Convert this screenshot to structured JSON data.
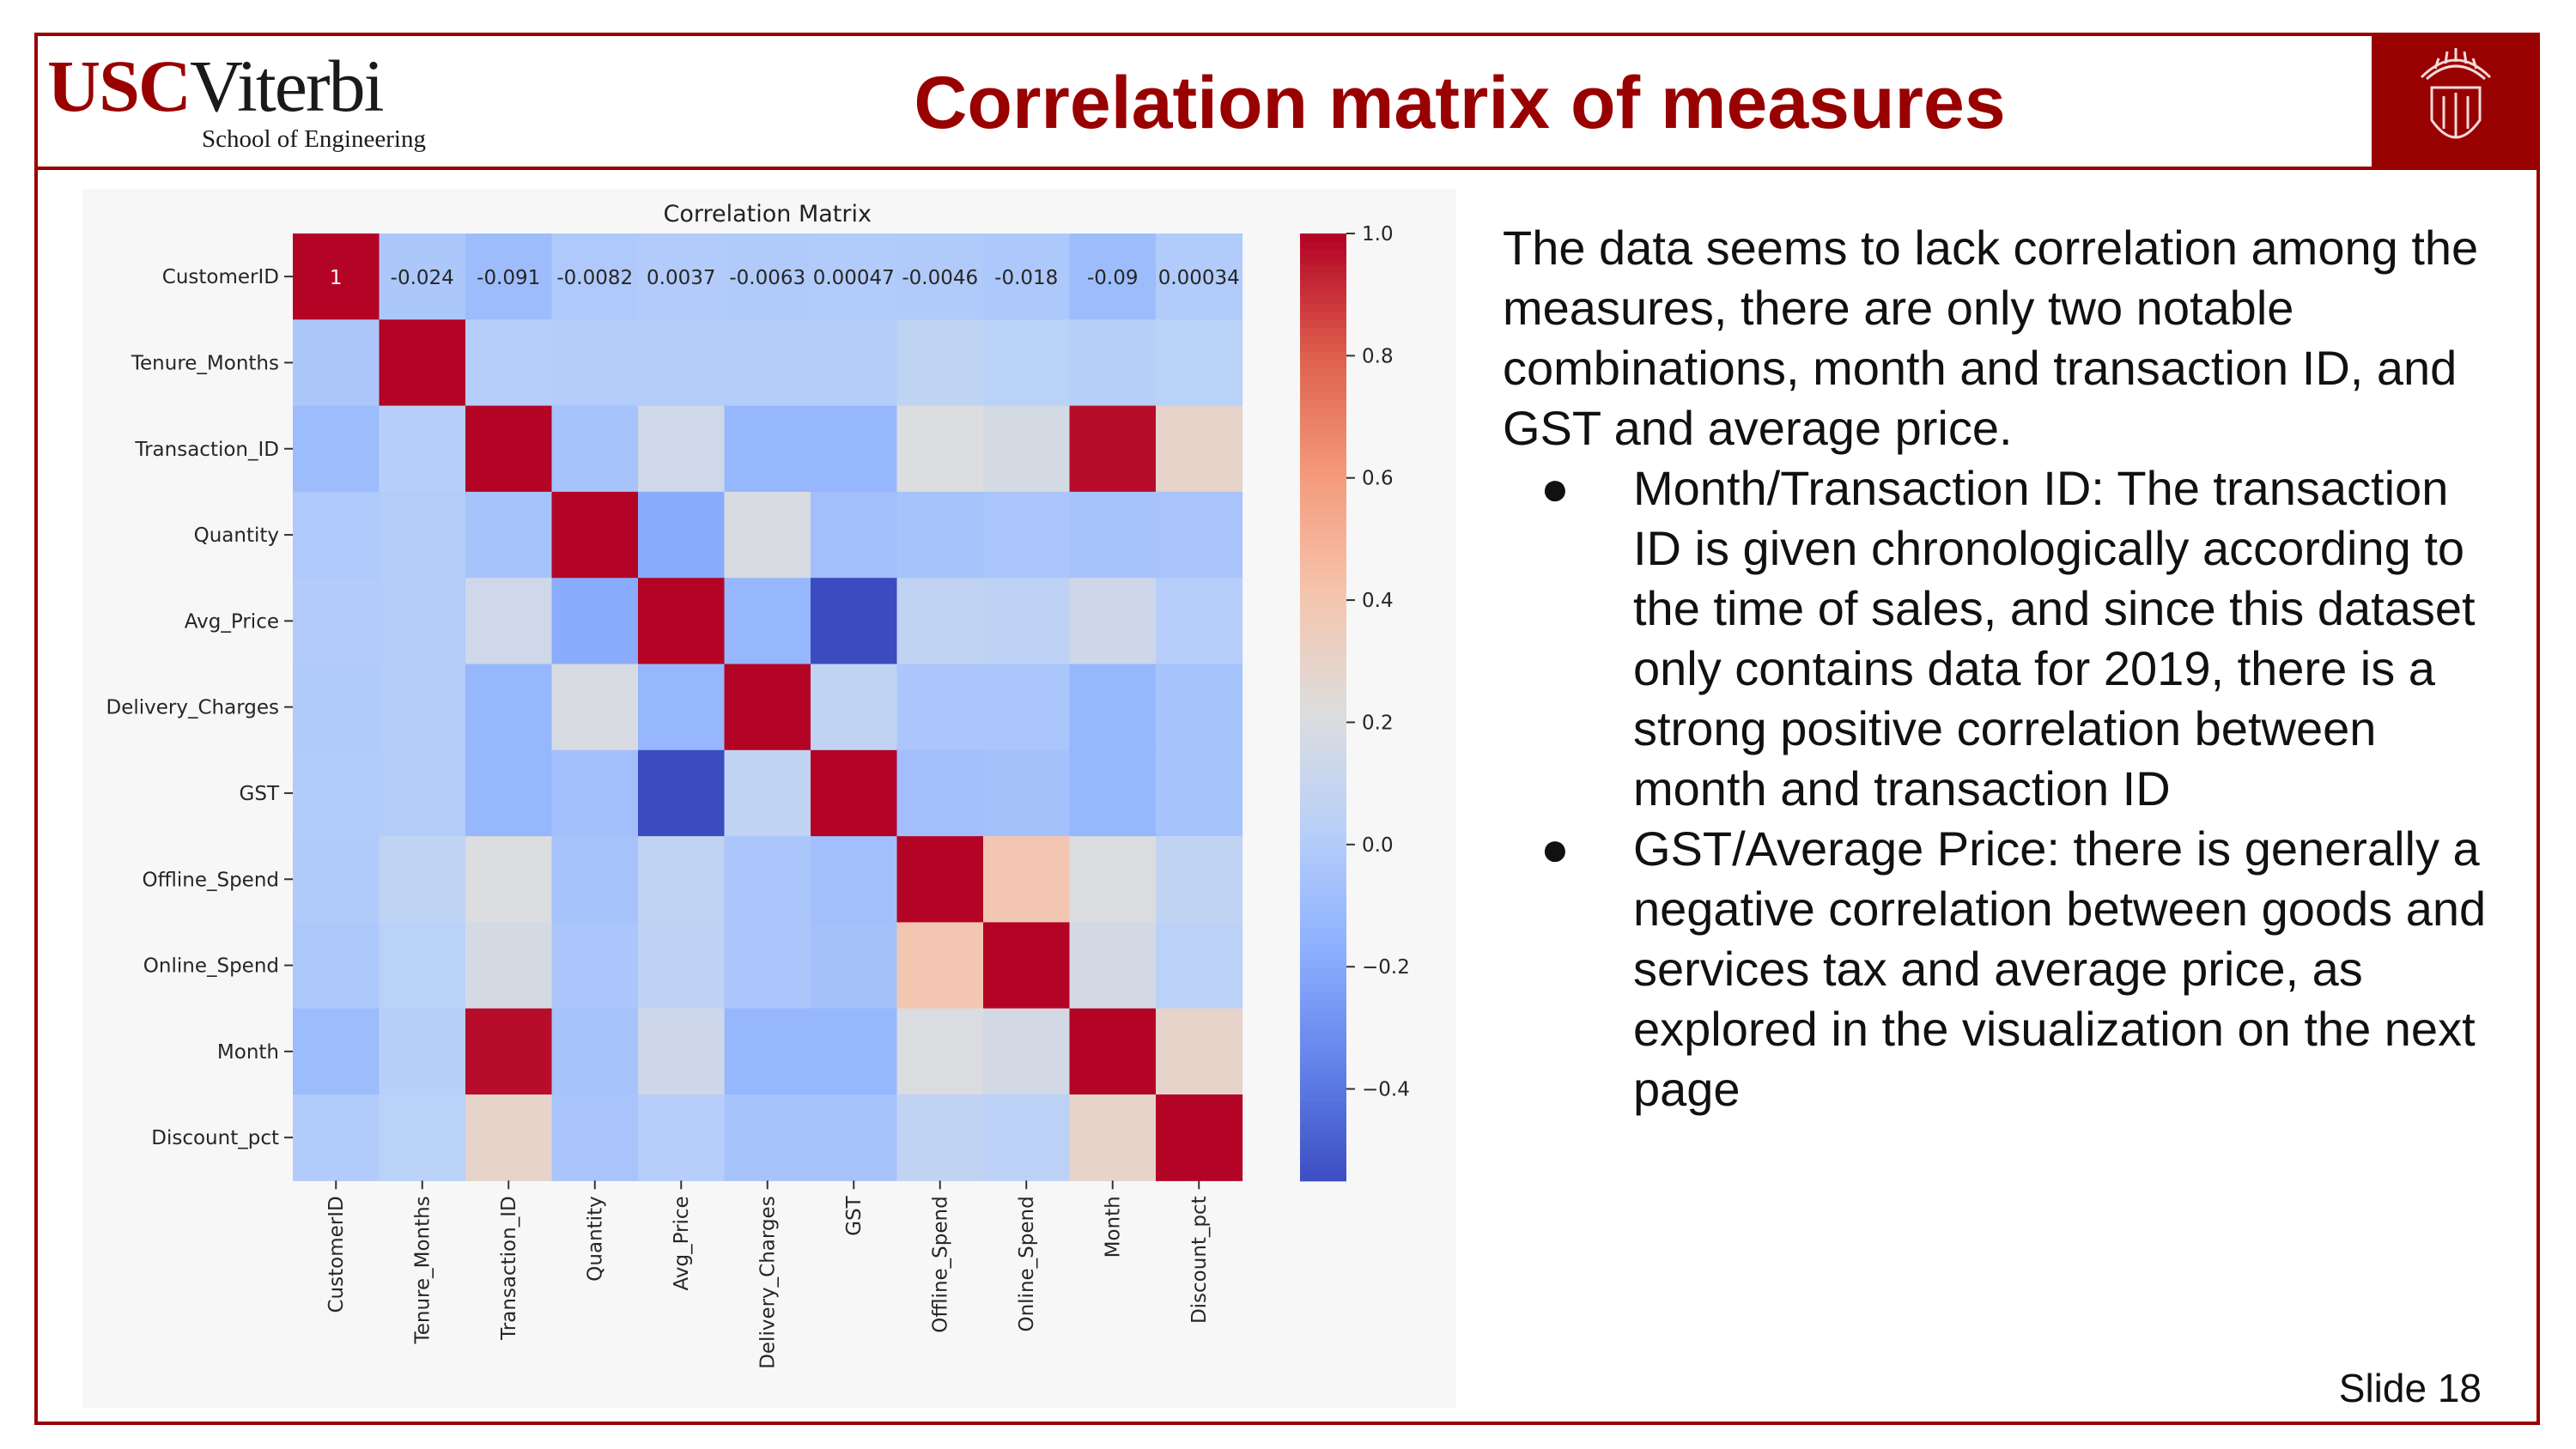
{
  "header": {
    "logo_usc": "USC",
    "logo_viterbi": "Viterbi",
    "logo_school": "School of Engineering",
    "title": "Correlation matrix of measures"
  },
  "body": {
    "intro": "The data seems to lack correlation among the measures, there are only two notable combinations, month and transaction ID, and GST and average price.",
    "bullets": [
      "Month/Transaction ID: The transaction ID is given chronologically according to the time of sales, and since this dataset only contains data for 2019, there is a strong positive correlation between month and transaction ID",
      "GST/Average Price: there is generally a negative correlation between goods and services tax and average price, as explored in the visualization on the next page"
    ],
    "bullet_glyph": "●"
  },
  "footer": {
    "slide_number": "Slide 18"
  },
  "colors": {
    "brand": "#990000"
  },
  "chart_data": {
    "type": "heatmap",
    "title": "Correlation Matrix",
    "colormap": "coolwarm",
    "vmin": -0.55,
    "vmax": 1.0,
    "variables": [
      "CustomerID",
      "Tenure_Months",
      "Transaction_ID",
      "Quantity",
      "Avg_Price",
      "Delivery_Charges",
      "GST",
      "Offline_Spend",
      "Online_Spend",
      "Month",
      "Discount_pct"
    ],
    "matrix": [
      [
        1,
        -0.024,
        -0.091,
        -0.0082,
        0.0037,
        -0.0063,
        0.00047,
        -0.0046,
        -0.018,
        -0.09,
        0.00034
      ],
      [
        -0.024,
        1,
        0.02,
        0.01,
        0.01,
        0.01,
        0.01,
        0.07,
        0.04,
        0.03,
        0.04
      ],
      [
        -0.091,
        0.02,
        1,
        -0.05,
        0.15,
        -0.12,
        -0.12,
        0.22,
        0.18,
        0.98,
        0.3
      ],
      [
        -0.0082,
        0.01,
        -0.05,
        1,
        -0.18,
        0.2,
        -0.07,
        -0.05,
        -0.03,
        -0.05,
        -0.04
      ],
      [
        0.0037,
        0.01,
        0.15,
        -0.18,
        1,
        -0.12,
        -0.55,
        0.08,
        0.06,
        0.14,
        0.02
      ],
      [
        -0.0063,
        0.01,
        -0.12,
        0.2,
        -0.12,
        1,
        0.08,
        -0.03,
        -0.03,
        -0.12,
        -0.05
      ],
      [
        0.00047,
        0.01,
        -0.12,
        -0.07,
        -0.55,
        0.08,
        1,
        -0.07,
        -0.06,
        -0.12,
        -0.05
      ],
      [
        -0.0046,
        0.07,
        0.22,
        -0.05,
        0.08,
        -0.03,
        -0.07,
        1,
        0.4,
        0.21,
        0.08
      ],
      [
        -0.018,
        0.04,
        0.18,
        -0.03,
        0.06,
        -0.03,
        -0.06,
        0.4,
        1,
        0.17,
        0.05
      ],
      [
        -0.09,
        0.03,
        0.98,
        -0.05,
        0.14,
        -0.12,
        -0.12,
        0.21,
        0.17,
        1,
        0.3
      ],
      [
        0.00034,
        0.04,
        0.3,
        -0.04,
        0.02,
        -0.05,
        -0.05,
        0.08,
        0.05,
        0.3,
        1
      ]
    ],
    "annotated_row": 0,
    "annotations": [
      "1",
      "-0.024",
      "-0.091",
      "-0.0082",
      "0.0037",
      "-0.0063",
      "0.00047",
      "-0.0046",
      "-0.018",
      "-0.09",
      "0.00034"
    ],
    "colorbar_ticks": [
      1.0,
      0.8,
      0.6,
      0.4,
      0.2,
      0.0,
      -0.2,
      -0.4
    ],
    "colorbar_tick_labels": [
      "1.0",
      "0.8",
      "0.6",
      "0.4",
      "0.2",
      "0.0",
      "−0.2",
      "−0.4"
    ]
  }
}
